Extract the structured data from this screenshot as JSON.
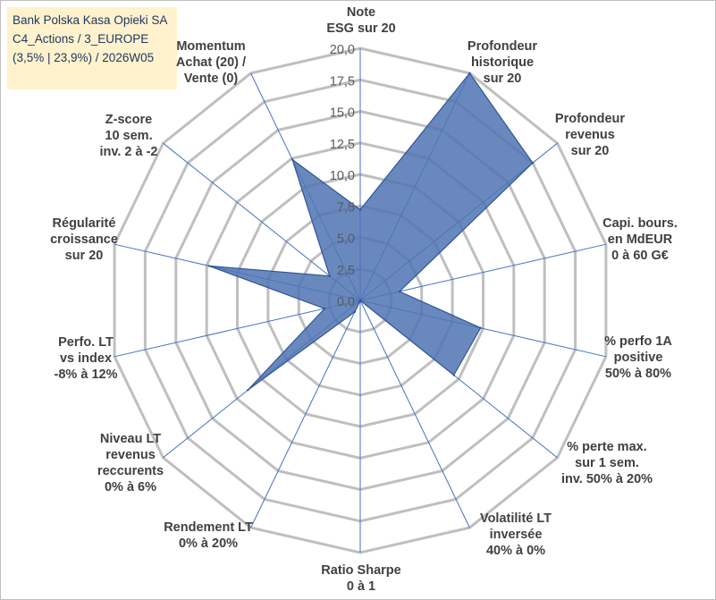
{
  "title_lines": [
    "Bank Polska Kasa Opieki SA",
    "C4_Actions / 3_EUROPE",
    "(3,5% | 23,9%) / 2026W05"
  ],
  "chart_data": {
    "type": "radar",
    "rmin": 0,
    "rmax": 20,
    "ticks": [
      "0,0",
      "2,5",
      "5,0",
      "7,5",
      "10,0",
      "12,5",
      "15,0",
      "17,5",
      "20,0"
    ],
    "tick_values": [
      0,
      2.5,
      5,
      7.5,
      10,
      12.5,
      15,
      17.5,
      20
    ],
    "axes": [
      {
        "label": [
          "Note",
          "ESG sur 20"
        ]
      },
      {
        "label": [
          "Profondeur",
          "historique",
          "sur 20"
        ]
      },
      {
        "label": [
          "Profondeur",
          "revenus",
          "sur 20"
        ]
      },
      {
        "label": [
          "Capi. bours.",
          "en MdEUR",
          "0 à 60 G€"
        ]
      },
      {
        "label": [
          "% perfo 1A",
          "positive",
          "50% à 80%"
        ]
      },
      {
        "label": [
          "% perte max.",
          "sur 1 sem.",
          "inv. 50% à 20%"
        ]
      },
      {
        "label": [
          "Volatilité LT",
          "inversée",
          "40% à 0%"
        ]
      },
      {
        "label": [
          "Ratio Sharpe",
          "0 à 1"
        ]
      },
      {
        "label": [
          "Rendement LT",
          "0% à 20%"
        ]
      },
      {
        "label": [
          "Niveau LT",
          "revenus",
          "reccurents",
          "0% à 6%"
        ]
      },
      {
        "label": [
          "Perfo. LT",
          "vs index",
          "-8% à 12%"
        ]
      },
      {
        "label": [
          "Régularité",
          "croissance",
          "sur 20"
        ]
      },
      {
        "label": [
          "Z-score",
          "10 sem.",
          "inv. 2 à -2"
        ]
      },
      {
        "label": [
          "Momentum",
          "Achat (20) /",
          "Vente (0)"
        ]
      }
    ],
    "series": [
      {
        "values": [
          7.2,
          20,
          17.5,
          3.2,
          9.8,
          9.5,
          0,
          0,
          1.0,
          11.4,
          2.9,
          12.3,
          3.1,
          12.4
        ]
      }
    ],
    "grid": true,
    "colors": {
      "fill": "#4f74b3",
      "stroke": "#2f5597",
      "grid": "#bfbfbf",
      "spoke": "#4472c4"
    }
  }
}
